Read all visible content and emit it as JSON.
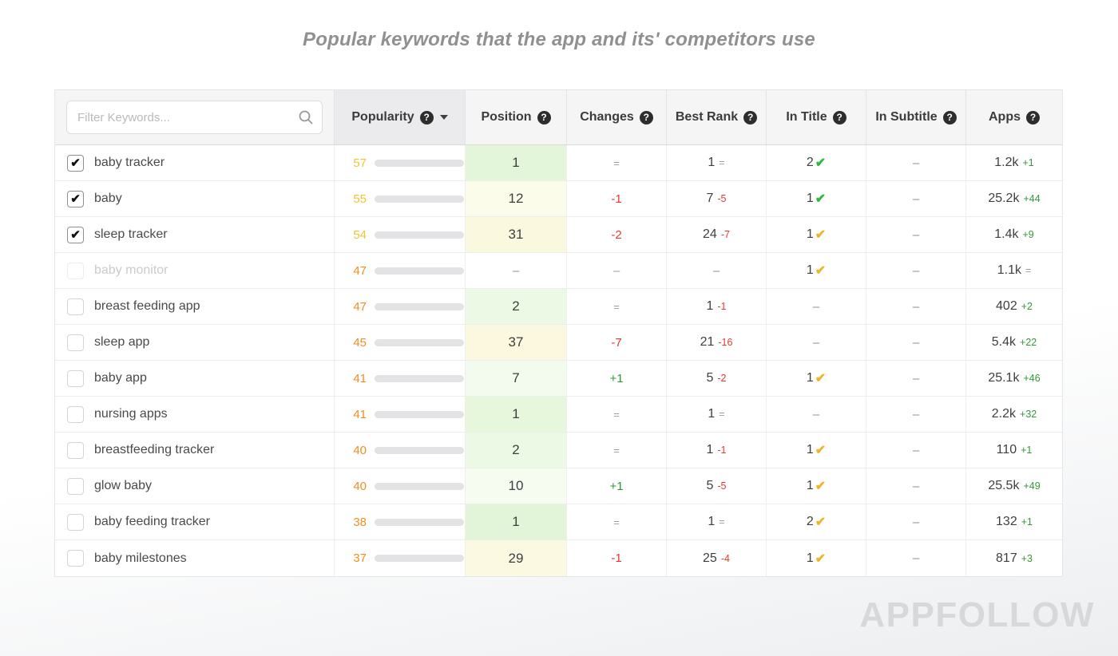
{
  "page": {
    "title": "Popular keywords that the app and its' competitors use",
    "watermark": "APPFOLLOW"
  },
  "filter": {
    "placeholder": "Filter Keywords..."
  },
  "colors": {
    "yellow": "#f2c431",
    "orange": "#ef8e24",
    "red": "#e63a2e",
    "green": "#359738",
    "gray": "#9b9b9d",
    "check_green": "#2eb843",
    "check_yellow": "#f0b429",
    "track": "#e3e3e5"
  },
  "columns": [
    {
      "id": "popularity",
      "label": "Popularity",
      "help": true,
      "sorted": true
    },
    {
      "id": "position",
      "label": "Position",
      "help": true,
      "sorted": false
    },
    {
      "id": "changes",
      "label": "Changes",
      "help": true,
      "sorted": false
    },
    {
      "id": "best-rank",
      "label": "Best Rank",
      "help": true,
      "sorted": false
    },
    {
      "id": "in-title",
      "label": "In Title",
      "help": true,
      "sorted": false
    },
    {
      "id": "in-subtitle",
      "label": "In Subtitle",
      "help": true,
      "sorted": false
    },
    {
      "id": "apps",
      "label": "Apps",
      "help": true,
      "sorted": false
    }
  ],
  "rows": [
    {
      "keyword": "baby tracker",
      "checked": true,
      "disabled": false,
      "popularity": 57,
      "pop_color": "yellow",
      "position": "1",
      "position_bg": "#e4f6d9",
      "changes": "=",
      "changes_color": "gray",
      "best_rank": "1",
      "best_delta": "=",
      "best_delta_color": "gray",
      "in_title": "2",
      "in_title_check": "check_green",
      "in_subtitle": "–",
      "apps": "1.2k",
      "apps_delta": "+1",
      "apps_delta_color": "green"
    },
    {
      "keyword": "baby",
      "checked": true,
      "disabled": false,
      "popularity": 55,
      "pop_color": "yellow",
      "position": "12",
      "position_bg": "#fcfcea",
      "changes": "-1",
      "changes_color": "red",
      "best_rank": "7",
      "best_delta": "-5",
      "best_delta_color": "red",
      "in_title": "1",
      "in_title_check": "check_green",
      "in_subtitle": "–",
      "apps": "25.2k",
      "apps_delta": "+44",
      "apps_delta_color": "green"
    },
    {
      "keyword": "sleep tracker",
      "checked": true,
      "disabled": false,
      "popularity": 54,
      "pop_color": "yellow",
      "position": "31",
      "position_bg": "#fbf8e0",
      "changes": "-2",
      "changes_color": "red",
      "best_rank": "24",
      "best_delta": "-7",
      "best_delta_color": "red",
      "in_title": "1",
      "in_title_check": "check_yellow",
      "in_subtitle": "–",
      "apps": "1.4k",
      "apps_delta": "+9",
      "apps_delta_color": "green"
    },
    {
      "keyword": "baby monitor",
      "checked": false,
      "disabled": true,
      "popularity": 47,
      "pop_color": "orange",
      "position": "–",
      "position_bg": "#ffffff",
      "changes": "–",
      "changes_color": "gray",
      "best_rank": "–",
      "best_delta": "",
      "best_delta_color": "gray",
      "in_title": "1",
      "in_title_check": "check_yellow",
      "in_subtitle": "–",
      "apps": "1.1k",
      "apps_delta": "=",
      "apps_delta_color": "gray"
    },
    {
      "keyword": "breast feeding app",
      "checked": false,
      "disabled": false,
      "popularity": 47,
      "pop_color": "orange",
      "position": "2",
      "position_bg": "#ecf9e4",
      "changes": "=",
      "changes_color": "gray",
      "best_rank": "1",
      "best_delta": "-1",
      "best_delta_color": "red",
      "in_title": "–",
      "in_title_check": null,
      "in_subtitle": "–",
      "apps": "402",
      "apps_delta": "+2",
      "apps_delta_color": "green"
    },
    {
      "keyword": "sleep app",
      "checked": false,
      "disabled": false,
      "popularity": 45,
      "pop_color": "orange",
      "position": "37",
      "position_bg": "#fcf8e0",
      "changes": "-7",
      "changes_color": "red",
      "best_rank": "21",
      "best_delta": "-16",
      "best_delta_color": "red",
      "in_title": "–",
      "in_title_check": null,
      "in_subtitle": "–",
      "apps": "5.4k",
      "apps_delta": "+22",
      "apps_delta_color": "green"
    },
    {
      "keyword": "baby app",
      "checked": false,
      "disabled": false,
      "popularity": 41,
      "pop_color": "orange",
      "position": "7",
      "position_bg": "#f3fbee",
      "changes": "+1",
      "changes_color": "green",
      "best_rank": "5",
      "best_delta": "-2",
      "best_delta_color": "red",
      "in_title": "1",
      "in_title_check": "check_yellow",
      "in_subtitle": "–",
      "apps": "25.1k",
      "apps_delta": "+46",
      "apps_delta_color": "green"
    },
    {
      "keyword": "nursing apps",
      "checked": false,
      "disabled": false,
      "popularity": 41,
      "pop_color": "orange",
      "position": "1",
      "position_bg": "#e6f7dc",
      "changes": "=",
      "changes_color": "gray",
      "best_rank": "1",
      "best_delta": "=",
      "best_delta_color": "gray",
      "in_title": "–",
      "in_title_check": null,
      "in_subtitle": "–",
      "apps": "2.2k",
      "apps_delta": "+32",
      "apps_delta_color": "green"
    },
    {
      "keyword": "breastfeeding tracker",
      "checked": false,
      "disabled": false,
      "popularity": 40,
      "pop_color": "orange",
      "position": "2",
      "position_bg": "#ecf9e4",
      "changes": "=",
      "changes_color": "gray",
      "best_rank": "1",
      "best_delta": "-1",
      "best_delta_color": "red",
      "in_title": "1",
      "in_title_check": "check_yellow",
      "in_subtitle": "–",
      "apps": "110",
      "apps_delta": "+1",
      "apps_delta_color": "green"
    },
    {
      "keyword": "glow baby",
      "checked": false,
      "disabled": false,
      "popularity": 40,
      "pop_color": "orange",
      "position": "10",
      "position_bg": "#f6fcf0",
      "changes": "+1",
      "changes_color": "green",
      "best_rank": "5",
      "best_delta": "-5",
      "best_delta_color": "red",
      "in_title": "1",
      "in_title_check": "check_yellow",
      "in_subtitle": "–",
      "apps": "25.5k",
      "apps_delta": "+49",
      "apps_delta_color": "green"
    },
    {
      "keyword": "baby feeding tracker",
      "checked": false,
      "disabled": false,
      "popularity": 38,
      "pop_color": "orange",
      "position": "1",
      "position_bg": "#e2f5d8",
      "changes": "=",
      "changes_color": "gray",
      "best_rank": "1",
      "best_delta": "=",
      "best_delta_color": "gray",
      "in_title": "2",
      "in_title_check": "check_yellow",
      "in_subtitle": "–",
      "apps": "132",
      "apps_delta": "+1",
      "apps_delta_color": "green"
    },
    {
      "keyword": "baby milestones",
      "checked": false,
      "disabled": false,
      "popularity": 37,
      "pop_color": "orange",
      "position": "29",
      "position_bg": "#fcf9e3",
      "changes": "-1",
      "changes_color": "red",
      "best_rank": "25",
      "best_delta": "-4",
      "best_delta_color": "red",
      "in_title": "1",
      "in_title_check": "check_yellow",
      "in_subtitle": "–",
      "apps": "817",
      "apps_delta": "+3",
      "apps_delta_color": "green"
    }
  ]
}
